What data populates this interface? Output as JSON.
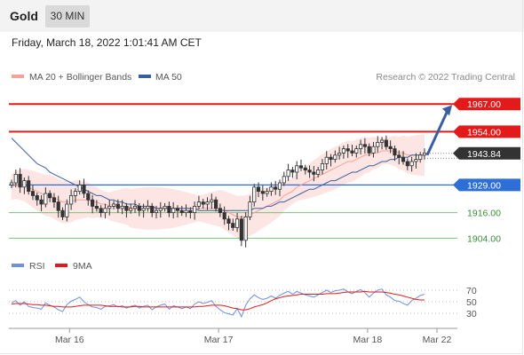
{
  "header": {
    "symbol": "Gold",
    "timeframe": "30 MIN",
    "timestamp": "Friday, March 18, 2022 1:01:41 AM CET"
  },
  "copyright": "Research © 2022 Trading Central",
  "colors": {
    "resistance": "#e31a1a",
    "pivot": "#2d6fd6",
    "support": "#7cc27c",
    "bollinger": "#f7a19a",
    "ma50": "#3a5fa0",
    "price_tag": "#333333",
    "rsi": "#6f8fe0",
    "rsi_ma": "#e31a1a"
  },
  "chart_data": [
    {
      "type": "candlestick",
      "legend": [
        {
          "name": "MA 20 + Bollinger Bands",
          "color": "#f7a19a"
        },
        {
          "name": "MA 50",
          "color": "#3a5fa0"
        }
      ],
      "x_ticks": [
        "Mar 16",
        "Mar 17",
        "Mar 18",
        "Mar 22"
      ],
      "ylim": [
        1895,
        1975
      ],
      "last_price": "1943.84",
      "levels": [
        {
          "label": "1967.00",
          "value": 1967.0,
          "kind": "resistance"
        },
        {
          "label": "1954.00",
          "value": 1954.0,
          "kind": "resistance"
        },
        {
          "label": "1929.00",
          "value": 1929.0,
          "kind": "pivot"
        },
        {
          "label": "1916.00",
          "value": 1916.0,
          "kind": "support"
        },
        {
          "label": "1904.00",
          "value": 1904.0,
          "kind": "support"
        }
      ],
      "close": [
        1930,
        1934,
        1928,
        1931,
        1926,
        1924,
        1922,
        1920,
        1925,
        1923,
        1921,
        1917,
        1914,
        1920,
        1924,
        1926,
        1929,
        1925,
        1922,
        1919,
        1918,
        1916,
        1918,
        1919,
        1920,
        1918,
        1919,
        1917,
        1918,
        1919,
        1917,
        1918,
        1919,
        1916,
        1917,
        1918,
        1919,
        1916,
        1918,
        1917,
        1916,
        1917,
        1916,
        1919,
        1921,
        1920,
        1921,
        1922,
        1918,
        1916,
        1913,
        1911,
        1909,
        1913,
        1903,
        1914,
        1921,
        1928,
        1926,
        1925,
        1926,
        1928,
        1927,
        1930,
        1933,
        1936,
        1935,
        1938,
        1937,
        1936,
        1935,
        1934,
        1936,
        1939,
        1942,
        1941,
        1943,
        1944,
        1946,
        1945,
        1944,
        1946,
        1948,
        1947,
        1944,
        1947,
        1949,
        1950,
        1947,
        1946,
        1943,
        1942,
        1940,
        1938,
        1940,
        1941,
        1943,
        1944
      ],
      "ma20": [
        1928,
        1929,
        1929,
        1929,
        1928,
        1927,
        1926,
        1925,
        1924,
        1924,
        1923,
        1922,
        1921,
        1921,
        1921,
        1922,
        1922,
        1922,
        1922,
        1921,
        1921,
        1920,
        1920,
        1919,
        1919,
        1919,
        1919,
        1919,
        1918,
        1918,
        1918,
        1918,
        1918,
        1918,
        1918,
        1918,
        1918,
        1918,
        1918,
        1918,
        1918,
        1918,
        1918,
        1918,
        1918,
        1918,
        1918,
        1918,
        1918,
        1918,
        1917,
        1916,
        1915,
        1914,
        1914,
        1914,
        1915,
        1916,
        1917,
        1918,
        1919,
        1920,
        1921,
        1922,
        1924,
        1925,
        1926,
        1928,
        1929,
        1930,
        1931,
        1932,
        1933,
        1934,
        1935,
        1936,
        1937,
        1938,
        1939,
        1940,
        1940,
        1941,
        1942,
        1943,
        1943,
        1944,
        1944,
        1945,
        1945,
        1945,
        1945,
        1944,
        1944,
        1943,
        1943,
        1943,
        1943,
        1943
      ],
      "bb_width": 6,
      "ma50": [
        1951,
        1949,
        1947,
        1945,
        1943,
        1941,
        1939,
        1938,
        1937,
        1935,
        1934,
        1933,
        1932,
        1931,
        1930,
        1929,
        1928,
        1927,
        1926,
        1925,
        1924,
        1924,
        1923,
        1922,
        1922,
        1921,
        1921,
        1920,
        1920,
        1920,
        1919,
        1919,
        1919,
        1919,
        1918,
        1918,
        1918,
        1918,
        1918,
        1918,
        1918,
        1918,
        1918,
        1918,
        1917,
        1917,
        1917,
        1917,
        1917,
        1917,
        1917,
        1917,
        1917,
        1917,
        1917,
        1917,
        1917,
        1918,
        1918,
        1918,
        1919,
        1919,
        1920,
        1921,
        1921,
        1922,
        1923,
        1924,
        1925,
        1926,
        1927,
        1927,
        1928,
        1929,
        1930,
        1931,
        1931,
        1932,
        1933,
        1934,
        1935,
        1935,
        1936,
        1937,
        1938,
        1938,
        1939,
        1940,
        1940,
        1941,
        1941,
        1942,
        1942,
        1942,
        1943,
        1943,
        1943,
        1943
      ]
    },
    {
      "type": "line",
      "legend": [
        {
          "name": "RSI",
          "color": "#6f8fe0"
        },
        {
          "name": "9MA",
          "color": "#e31a1a"
        }
      ],
      "y_ticks": [
        70,
        50,
        30
      ],
      "ylim": [
        10,
        90
      ],
      "rsi": [
        48,
        52,
        44,
        50,
        42,
        40,
        39,
        37,
        48,
        44,
        41,
        36,
        33,
        45,
        51,
        54,
        58,
        50,
        45,
        41,
        40,
        37,
        42,
        43,
        45,
        41,
        43,
        39,
        42,
        44,
        39,
        42,
        44,
        36,
        41,
        44,
        46,
        37,
        43,
        41,
        38,
        41,
        38,
        46,
        50,
        47,
        49,
        52,
        42,
        36,
        31,
        29,
        27,
        38,
        24,
        44,
        55,
        62,
        57,
        54,
        56,
        60,
        56,
        61,
        65,
        68,
        63,
        68,
        65,
        62,
        60,
        58,
        62,
        66,
        70,
        66,
        69,
        70,
        72,
        67,
        64,
        68,
        71,
        66,
        58,
        65,
        70,
        72,
        62,
        58,
        52,
        51,
        47,
        44,
        52,
        56,
        61,
        63
      ],
      "ma9": [
        46,
        47,
        47,
        47,
        46,
        45,
        45,
        44,
        44,
        43,
        42,
        42,
        41,
        41,
        41,
        42,
        43,
        44,
        44,
        44,
        44,
        44,
        43,
        42,
        42,
        42,
        41,
        41,
        41,
        42,
        42,
        41,
        41,
        41,
        41,
        41,
        41,
        41,
        41,
        41,
        41,
        41,
        41,
        41,
        42,
        42,
        43,
        44,
        44,
        44,
        43,
        41,
        39,
        38,
        36,
        36,
        38,
        41,
        43,
        45,
        48,
        52,
        55,
        57,
        59,
        60,
        61,
        62,
        63,
        63,
        63,
        63,
        63,
        63,
        64,
        64,
        64,
        65,
        66,
        67,
        67,
        67,
        67,
        68,
        67,
        67,
        67,
        67,
        66,
        65,
        63,
        62,
        60,
        58,
        56,
        54,
        53,
        53
      ]
    }
  ]
}
